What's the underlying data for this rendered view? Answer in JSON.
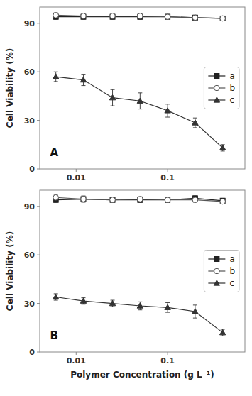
{
  "chart_data": [
    {
      "type": "line",
      "ylabel": "Cell Viability (%)",
      "annotations": [
        "A"
      ],
      "x": [
        0.006,
        0.012,
        0.025,
        0.05,
        0.1,
        0.2,
        0.4
      ],
      "series": [
        {
          "name": "a",
          "color": "#222222",
          "marker": "square",
          "line_style": "solid",
          "values": [
            94.0,
            94.0,
            94.0,
            94.0,
            94.0,
            93.5,
            93.0
          ],
          "yerr": [
            1.5,
            1.5,
            1.5,
            1.5,
            1.5,
            1.5,
            1.5
          ]
        },
        {
          "name": "b",
          "color": "#555555",
          "marker": "circle-open",
          "line_style": "solid",
          "values": [
            95.0,
            94.5,
            94.5,
            94.5,
            94.0,
            93.5,
            93.0
          ],
          "yerr": [
            1.5,
            1.5,
            1.5,
            1.5,
            1.5,
            1.5,
            1.5
          ]
        },
        {
          "name": "c",
          "color": "#333333",
          "marker": "triangle",
          "line_style": "solid",
          "values": [
            57.0,
            55.0,
            44.0,
            42.0,
            36.0,
            28.5,
            13.0
          ],
          "yerr": [
            3.0,
            3.5,
            5.0,
            5.0,
            4.0,
            3.0,
            2.0
          ]
        }
      ],
      "log": "x",
      "xlim": [
        0.004,
        0.7
      ],
      "xticks": [
        0.01,
        0.1
      ],
      "ylim": [
        0,
        100
      ],
      "yticks": [
        0,
        30,
        60,
        90
      ],
      "grid": false,
      "legend": "center right"
    },
    {
      "type": "line",
      "ylabel": "Cell Viability (%)",
      "xlabel": "Polymer Concentration (g L⁻¹)",
      "annotations": [
        "B"
      ],
      "x": [
        0.006,
        0.012,
        0.025,
        0.05,
        0.1,
        0.2,
        0.4
      ],
      "series": [
        {
          "name": "a",
          "color": "#222222",
          "marker": "square",
          "line_style": "solid",
          "values": [
            94.0,
            94.5,
            94.0,
            94.0,
            94.0,
            95.0,
            93.5
          ],
          "yerr": [
            1.5,
            1.5,
            1.5,
            1.5,
            1.5,
            1.5,
            1.5
          ]
        },
        {
          "name": "b",
          "color": "#555555",
          "marker": "circle-open",
          "line_style": "solid",
          "values": [
            95.5,
            94.5,
            94.0,
            94.5,
            94.0,
            94.0,
            93.0
          ],
          "yerr": [
            1.5,
            2.0,
            1.5,
            1.5,
            1.5,
            1.5,
            1.5
          ]
        },
        {
          "name": "c",
          "color": "#333333",
          "marker": "triangle",
          "line_style": "solid",
          "values": [
            34.0,
            31.5,
            30.0,
            28.5,
            27.5,
            25.0,
            12.0
          ],
          "yerr": [
            2.0,
            2.0,
            2.0,
            2.5,
            3.0,
            4.0,
            2.0
          ]
        }
      ],
      "log": "x",
      "xlim": [
        0.004,
        0.7
      ],
      "xticks": [
        0.01,
        0.1
      ],
      "ylim": [
        0,
        100
      ],
      "yticks": [
        0,
        30,
        60,
        90
      ],
      "grid": false,
      "legend": "center right"
    }
  ]
}
